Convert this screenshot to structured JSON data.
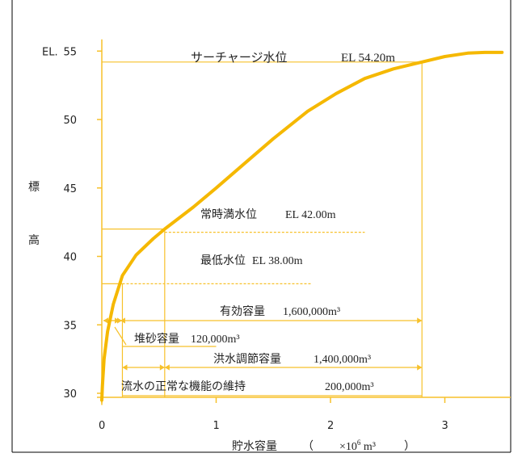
{
  "colors": {
    "curve": "#F5B800",
    "guide": "#F7C12A",
    "text": "#222222",
    "frame": "#000000"
  },
  "chart_data": {
    "type": "line",
    "title": "",
    "xlabel": "貯水容量",
    "xunit_prefix": "（",
    "xunit": "×10",
    "xunit_exp": "6",
    "xunit_tail": " m³",
    "xunit_suffix": "）",
    "ylabel_chars": [
      "標",
      "高"
    ],
    "ytick_prefix": "EL.",
    "xlim": [
      0,
      3.6
    ],
    "ylim": [
      29.5,
      55.5
    ],
    "xticks": [
      0,
      1,
      2,
      3
    ],
    "xtick_labels": [
      "0",
      "1",
      "2",
      "3"
    ],
    "yticks": [
      30,
      35,
      40,
      45,
      50,
      55
    ],
    "ytick_labels": [
      "30",
      "35",
      "40",
      "45",
      "50",
      "55"
    ],
    "grid": false,
    "legend": "none",
    "series": [
      {
        "x": [
          0.0,
          0.005,
          0.02,
          0.05,
          0.1,
          0.18,
          0.3,
          0.45,
          0.55,
          0.8,
          1.0,
          1.25,
          1.5,
          1.8,
          2.05,
          2.3,
          2.55,
          2.8,
          3.0,
          3.2,
          3.35,
          3.5
        ],
        "y": [
          29.5,
          30.5,
          32.5,
          34.5,
          36.5,
          38.6,
          40.1,
          41.3,
          42.0,
          43.6,
          45.0,
          46.8,
          48.6,
          50.6,
          51.9,
          53.0,
          53.7,
          54.2,
          54.6,
          54.85,
          54.9,
          54.9
        ]
      }
    ],
    "annotations": {
      "surcharge_label": "サーチャージ水位",
      "surcharge_el": "EL 54.20m",
      "normal_label": "常時満水位",
      "normal_el": "EL 42.00m",
      "min_label": "最低水位",
      "min_el": "EL 38.00m",
      "effective_label": "有効容量",
      "effective_value": "1,600,000m³",
      "sediment_label": "堆砂容量",
      "sediment_value": "120,000m³",
      "flood_label": "洪水調節容量",
      "flood_value": "1,400,000m³",
      "maintenance_label": "流水の正常な機能の維持",
      "maintenance_value": "200,000m³"
    },
    "levels": {
      "surcharge": 54.2,
      "normal": 42.0,
      "minimum": 38.0
    },
    "volumes": {
      "sediment_end": 0.12,
      "min_level_x": 0.18,
      "normal_level_x": 0.55,
      "surcharge_x": 2.8
    }
  }
}
